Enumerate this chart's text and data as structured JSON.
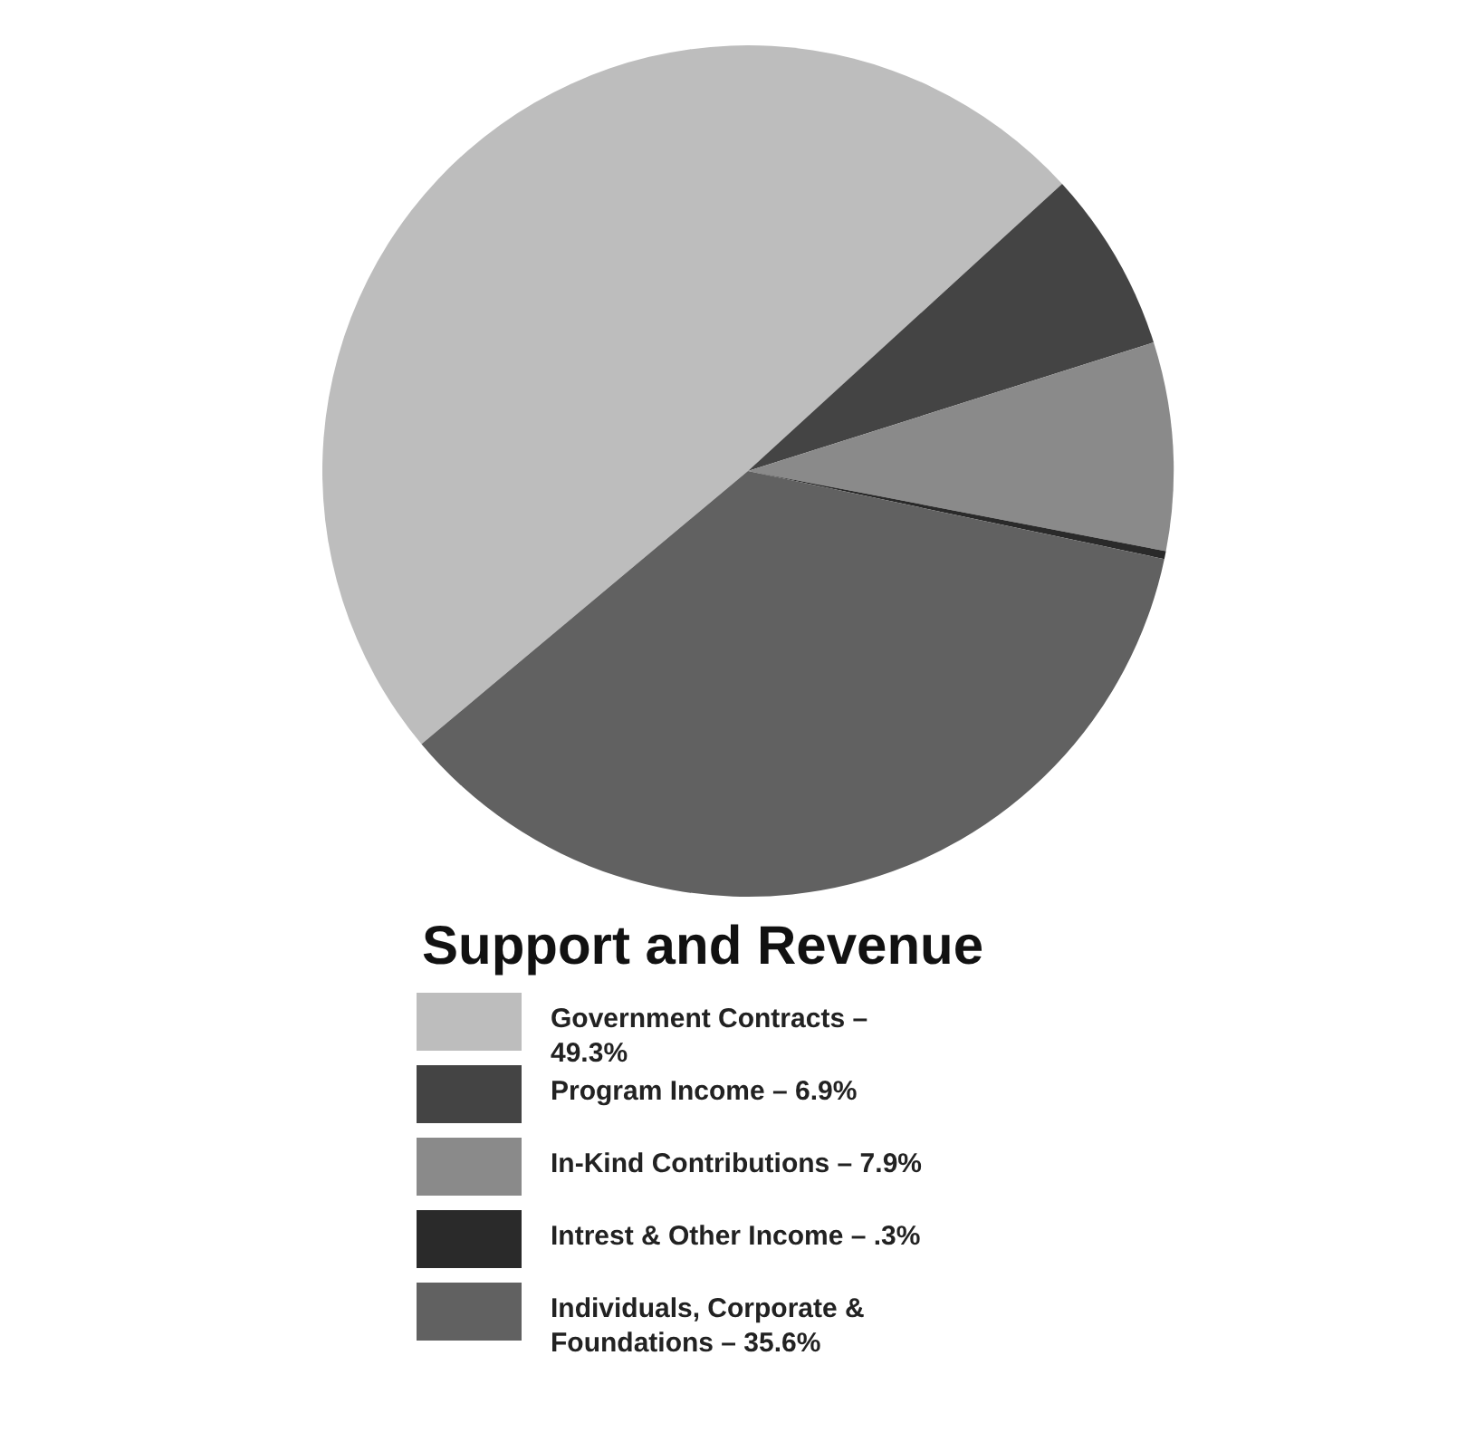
{
  "chart_data": {
    "type": "pie",
    "title": "Support and Revenue",
    "categories": [
      "Government Contracts – 49.3%",
      "Program Income – 6.9%",
      "In-Kind Contributions – 7.9%",
      "Intrest & Other Income – .3%",
      "Individuals, Corporate & Foundations – 35.6%"
    ],
    "values": [
      49.3,
      6.9,
      7.9,
      0.3,
      35.6
    ],
    "colors": [
      "#bdbdbd",
      "#444444",
      "#8a8a8a",
      "#2a2a2a",
      "#616161"
    ],
    "legend": "bottom"
  }
}
